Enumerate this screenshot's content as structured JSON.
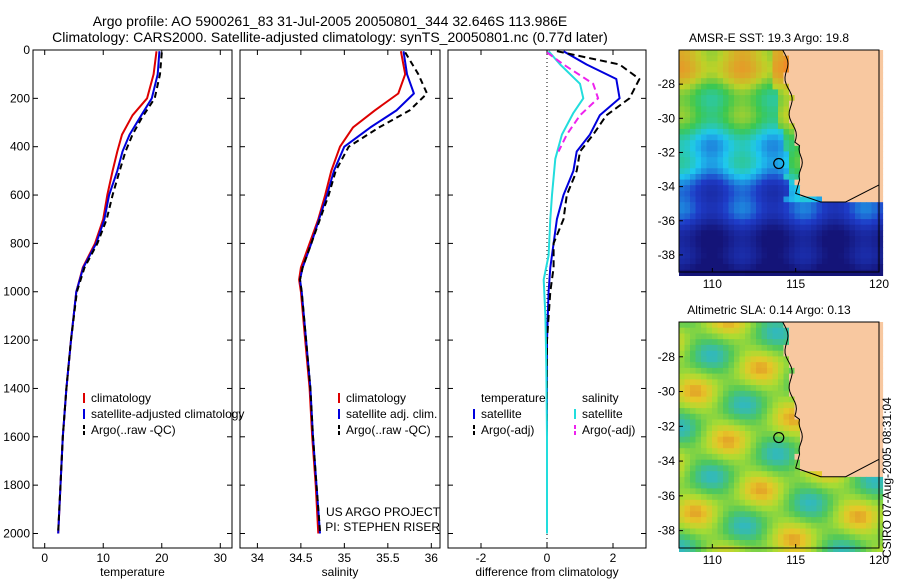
{
  "title_line1": "Argo profile: AO 5900261_83 31-Jul-2005 20050801_344 32.646S 113.986E",
  "title_line2": "Climatology: CARS2000. Satellite-adjusted climatology: synTS_20050801.nc (0.77d later)",
  "credit": "CSIRO 07-Aug-2005 08:31:04",
  "colors": {
    "climatology": "#dd0000",
    "satellite": "#0000dd",
    "argo": "#000000",
    "sat_salinity": "#22dddd",
    "argo_salinity": "#ee22ee",
    "land": "#f8c8a0"
  },
  "chart_data": [
    {
      "type": "line",
      "name": "temperature-panel",
      "xlabel": "temperature",
      "ylabel": "",
      "xlim": [
        -2,
        32
      ],
      "ylim": [
        2060,
        0
      ],
      "xticks": [
        0,
        10,
        20,
        30
      ],
      "yticks": [
        0,
        200,
        400,
        600,
        800,
        1000,
        1200,
        1400,
        1600,
        1800,
        2000
      ],
      "legend": [
        "climatology",
        "satellite-adjusted climatology",
        "Argo(..raw -QC)"
      ],
      "series": [
        {
          "name": "climatology",
          "color": "#dd0000",
          "dash": "",
          "points": [
            [
              19.1,
              5
            ],
            [
              18.6,
              100
            ],
            [
              17.5,
              200
            ],
            [
              15.0,
              270
            ],
            [
              13.2,
              350
            ],
            [
              12.4,
              420
            ],
            [
              11.6,
              500
            ],
            [
              10.7,
              600
            ],
            [
              10.0,
              700
            ],
            [
              8.6,
              800
            ],
            [
              6.5,
              900
            ],
            [
              5.4,
              1000
            ],
            [
              4.5,
              1200
            ],
            [
              3.7,
              1400
            ],
            [
              3.1,
              1600
            ],
            [
              2.7,
              1800
            ],
            [
              2.3,
              2000
            ]
          ]
        },
        {
          "name": "satellite-adjusted climatology",
          "color": "#0000dd",
          "dash": "",
          "points": [
            [
              19.6,
              5
            ],
            [
              19.3,
              100
            ],
            [
              18.3,
              200
            ],
            [
              16.5,
              270
            ],
            [
              14.5,
              350
            ],
            [
              13.3,
              420
            ],
            [
              12.4,
              500
            ],
            [
              11.0,
              600
            ],
            [
              10.2,
              700
            ],
            [
              8.8,
              800
            ],
            [
              6.6,
              900
            ],
            [
              5.4,
              1000
            ],
            [
              4.5,
              1200
            ],
            [
              3.7,
              1400
            ],
            [
              3.1,
              1600
            ],
            [
              2.7,
              1800
            ],
            [
              2.3,
              2000
            ]
          ]
        },
        {
          "name": "Argo(..raw -QC)",
          "color": "#000000",
          "dash": "6,4",
          "points": [
            [
              20.0,
              10
            ],
            [
              19.7,
              100
            ],
            [
              18.8,
              200
            ],
            [
              16.6,
              280
            ],
            [
              15.0,
              350
            ],
            [
              13.8,
              420
            ],
            [
              12.8,
              500
            ],
            [
              11.6,
              600
            ],
            [
              10.6,
              700
            ],
            [
              9.0,
              800
            ],
            [
              6.8,
              900
            ],
            [
              5.5,
              1000
            ],
            [
              4.5,
              1200
            ],
            [
              3.7,
              1400
            ],
            [
              3.1,
              1600
            ],
            [
              2.7,
              1800
            ],
            [
              2.3,
              1990
            ]
          ]
        }
      ],
      "annotation": []
    },
    {
      "type": "line",
      "name": "salinity-panel",
      "xlabel": "salinity",
      "ylabel": "",
      "xlim": [
        33.8,
        36.1
      ],
      "ylim": [
        2060,
        0
      ],
      "xticks": [
        34,
        34.5,
        35,
        35.5,
        36
      ],
      "yticks": [
        0,
        200,
        400,
        600,
        800,
        1000,
        1200,
        1400,
        1600,
        1800,
        2000
      ],
      "legend": [
        "climatology",
        "satellite adj. clim.",
        "Argo(..raw -QC)"
      ],
      "series": [
        {
          "name": "climatology",
          "color": "#dd0000",
          "dash": "",
          "points": [
            [
              35.65,
              5
            ],
            [
              35.7,
              100
            ],
            [
              35.62,
              180
            ],
            [
              35.35,
              250
            ],
            [
              35.1,
              320
            ],
            [
              34.95,
              400
            ],
            [
              34.85,
              500
            ],
            [
              34.78,
              600
            ],
            [
              34.7,
              700
            ],
            [
              34.6,
              800
            ],
            [
              34.5,
              900
            ],
            [
              34.48,
              950
            ],
            [
              34.5,
              1000
            ],
            [
              34.55,
              1200
            ],
            [
              34.6,
              1400
            ],
            [
              34.63,
              1600
            ],
            [
              34.67,
              1800
            ],
            [
              34.7,
              2000
            ]
          ]
        },
        {
          "name": "satellite adj. clim.",
          "color": "#0000dd",
          "dash": "",
          "points": [
            [
              35.68,
              5
            ],
            [
              35.72,
              100
            ],
            [
              35.8,
              180
            ],
            [
              35.6,
              250
            ],
            [
              35.3,
              320
            ],
            [
              35.0,
              400
            ],
            [
              34.88,
              500
            ],
            [
              34.8,
              600
            ],
            [
              34.71,
              700
            ],
            [
              34.62,
              800
            ],
            [
              34.52,
              900
            ],
            [
              34.49,
              950
            ],
            [
              34.51,
              1000
            ],
            [
              34.56,
              1200
            ],
            [
              34.61,
              1400
            ],
            [
              34.64,
              1600
            ],
            [
              34.68,
              1800
            ],
            [
              34.72,
              2000
            ]
          ]
        },
        {
          "name": "Argo(..raw -QC)",
          "color": "#000000",
          "dash": "6,4",
          "points": [
            [
              35.7,
              10
            ],
            [
              35.85,
              100
            ],
            [
              35.95,
              180
            ],
            [
              35.75,
              250
            ],
            [
              35.4,
              320
            ],
            [
              35.05,
              400
            ],
            [
              34.9,
              500
            ],
            [
              34.82,
              600
            ],
            [
              34.72,
              700
            ],
            [
              34.62,
              800
            ],
            [
              34.52,
              900
            ],
            [
              34.49,
              950
            ],
            [
              34.51,
              1000
            ],
            [
              34.56,
              1200
            ],
            [
              34.61,
              1400
            ],
            [
              34.64,
              1600
            ],
            [
              34.68,
              1800
            ],
            [
              34.72,
              1990
            ]
          ]
        }
      ],
      "annotation": [
        "US ARGO PROJECT",
        "PI: STEPHEN RISER"
      ]
    },
    {
      "type": "line",
      "name": "difference-panel",
      "xlabel": "difference from climatology",
      "ylabel": "",
      "xlim": [
        -3,
        3
      ],
      "ylim": [
        2060,
        0
      ],
      "xticks": [
        -2,
        0,
        2
      ],
      "yticks": [
        0,
        200,
        400,
        600,
        800,
        1000,
        1200,
        1400,
        1600,
        1800,
        2000
      ],
      "legend_headers": [
        "temperature",
        "salinity"
      ],
      "legend": [
        "satellite",
        "Argo(-adj)",
        "satellite",
        "Argo(-adj)"
      ],
      "series": [
        {
          "name": "temperature satellite",
          "color": "#0000dd",
          "dash": "",
          "points": [
            [
              0.5,
              5
            ],
            [
              1.2,
              60
            ],
            [
              2.1,
              120
            ],
            [
              2.2,
              200
            ],
            [
              1.6,
              270
            ],
            [
              1.3,
              350
            ],
            [
              0.9,
              420
            ],
            [
              0.8,
              500
            ],
            [
              0.5,
              600
            ],
            [
              0.3,
              700
            ],
            [
              0.2,
              800
            ],
            [
              0.1,
              900
            ],
            [
              0.05,
              1000
            ],
            [
              0,
              1200
            ],
            [
              0,
              1600
            ],
            [
              0,
              2000
            ]
          ]
        },
        {
          "name": "temperature Argo(-adj)",
          "color": "#000000",
          "dash": "7,4",
          "points": [
            [
              0.3,
              5
            ],
            [
              2.2,
              60
            ],
            [
              2.8,
              120
            ],
            [
              2.5,
              200
            ],
            [
              1.8,
              270
            ],
            [
              1.4,
              350
            ],
            [
              1.0,
              420
            ],
            [
              0.9,
              500
            ],
            [
              0.6,
              600
            ],
            [
              0.5,
              700
            ],
            [
              0.2,
              800
            ],
            [
              0.2,
              900
            ],
            [
              0.1,
              1000
            ],
            [
              0,
              1200
            ],
            [
              0,
              1600
            ],
            [
              0,
              2000
            ]
          ]
        },
        {
          "name": "salinity satellite",
          "color": "#22dddd",
          "dash": "",
          "points": [
            [
              0.05,
              5
            ],
            [
              0.4,
              60
            ],
            [
              1.0,
              140
            ],
            [
              1.1,
              200
            ],
            [
              0.8,
              260
            ],
            [
              0.45,
              350
            ],
            [
              0.25,
              450
            ],
            [
              0.15,
              600
            ],
            [
              0.1,
              700
            ],
            [
              0.05,
              850
            ],
            [
              -0.1,
              950
            ],
            [
              -0.05,
              1100
            ],
            [
              -0.02,
              1300
            ],
            [
              0,
              1600
            ],
            [
              0,
              2000
            ]
          ]
        },
        {
          "name": "salinity Argo(-adj)",
          "color": "#ee22ee",
          "dash": "7,4",
          "points": [
            [
              0.0,
              10
            ],
            [
              0.5,
              60
            ],
            [
              1.4,
              140
            ],
            [
              1.55,
              200
            ],
            [
              1.0,
              270
            ],
            [
              0.6,
              350
            ],
            [
              0.35,
              420
            ]
          ]
        }
      ],
      "annotation": []
    }
  ],
  "maps": [
    {
      "title": "AMSR-E SST: 19.3 Argo: 19.8",
      "xticks": [
        110,
        115,
        120
      ],
      "yticks": [
        -28,
        -30,
        -32,
        -34,
        -36,
        -38
      ]
    },
    {
      "title": "Altimetric SLA: 0.14 Argo: 0.13",
      "xticks": [
        110,
        115,
        120
      ],
      "yticks": [
        -28,
        -30,
        -32,
        -34,
        -36,
        -38
      ]
    }
  ]
}
